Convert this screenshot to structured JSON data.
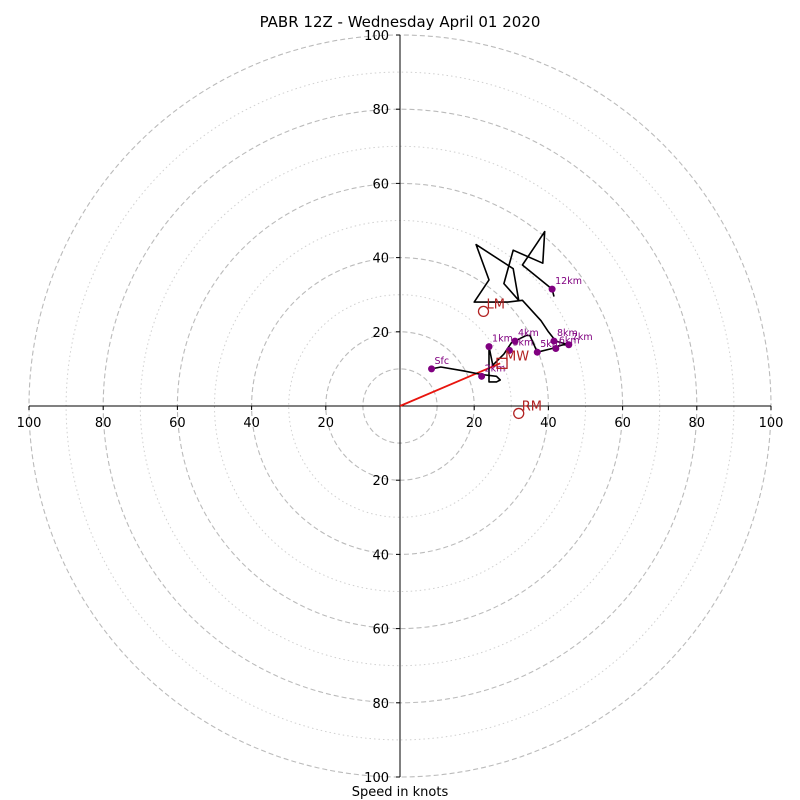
{
  "chart_data": {
    "type": "hodograph",
    "title": "PABR 12Z - Wednesday April 01 2020",
    "xlabel": "Speed in knots",
    "axis_range": [
      -100,
      100
    ],
    "tick_labels": [
      "100",
      "80",
      "60",
      "40",
      "20",
      "",
      "20",
      "40",
      "60",
      "80",
      "100"
    ],
    "ring_values_dashed": [
      10,
      20,
      40,
      60,
      80,
      100
    ],
    "ring_values_dotted": [
      30,
      50,
      70,
      90
    ],
    "grid": true,
    "colors": {
      "trace": "#000000",
      "markers": "#800080",
      "motion": "#b22222",
      "shear_vector": "#e8150e",
      "grid": "#bbbbbb",
      "axis": "#000000"
    },
    "trace": [
      [
        8.5,
        10
      ],
      [
        11,
        10.5
      ],
      [
        17,
        9.5
      ],
      [
        22,
        8.5
      ],
      [
        26,
        8
      ],
      [
        27,
        7
      ],
      [
        26,
        6.5
      ],
      [
        24,
        6.5
      ],
      [
        24,
        12
      ],
      [
        24,
        16
      ],
      [
        25,
        11
      ],
      [
        28,
        14
      ],
      [
        30,
        17
      ],
      [
        32,
        18
      ],
      [
        34,
        19
      ],
      [
        35,
        19
      ],
      [
        37,
        14.5
      ],
      [
        41,
        15.5
      ],
      [
        42,
        16
      ],
      [
        44,
        16.5
      ],
      [
        45.5,
        16.5
      ],
      [
        42,
        17.5
      ],
      [
        40,
        20
      ],
      [
        38,
        23
      ],
      [
        33,
        28.5
      ],
      [
        29,
        28
      ],
      [
        25.5,
        28
      ],
      [
        20,
        28
      ],
      [
        24,
        34
      ],
      [
        20.5,
        43.5
      ],
      [
        30.5,
        37
      ],
      [
        32,
        28.5
      ],
      [
        28,
        33
      ],
      [
        30.5,
        42
      ],
      [
        38.5,
        38.5
      ],
      [
        39,
        47
      ],
      [
        37,
        44
      ],
      [
        33,
        38
      ],
      [
        41,
        31.5
      ],
      [
        41.5,
        29.5
      ]
    ],
    "markers": [
      {
        "label": "Sfc",
        "u": 8.5,
        "v": 10
      },
      {
        "label": "2km",
        "u": 22,
        "v": 8
      },
      {
        "label": "1km",
        "u": 24,
        "v": 16
      },
      {
        "label": "3km",
        "u": 29.5,
        "v": 15
      },
      {
        "label": "4km",
        "u": 31,
        "v": 17.5
      },
      {
        "label": "5km",
        "u": 37,
        "v": 14.5
      },
      {
        "label": "6km",
        "u": 42,
        "v": 15.5
      },
      {
        "label": "7km",
        "u": 45.5,
        "v": 16.5
      },
      {
        "label": "8km",
        "u": 41.5,
        "v": 17.5
      },
      {
        "label": "12km",
        "u": 41,
        "v": 31.5
      }
    ],
    "storm_motion": [
      {
        "label": "LM",
        "u": 22.5,
        "v": 25.5,
        "shape": "circle"
      },
      {
        "label": "RM",
        "u": 32,
        "v": -2,
        "shape": "circle"
      },
      {
        "label": "MW",
        "u": 27.5,
        "v": 11.5,
        "shape": "square"
      }
    ],
    "shear_vector": {
      "from": [
        0,
        0
      ],
      "to": [
        27,
        11.5
      ]
    }
  }
}
